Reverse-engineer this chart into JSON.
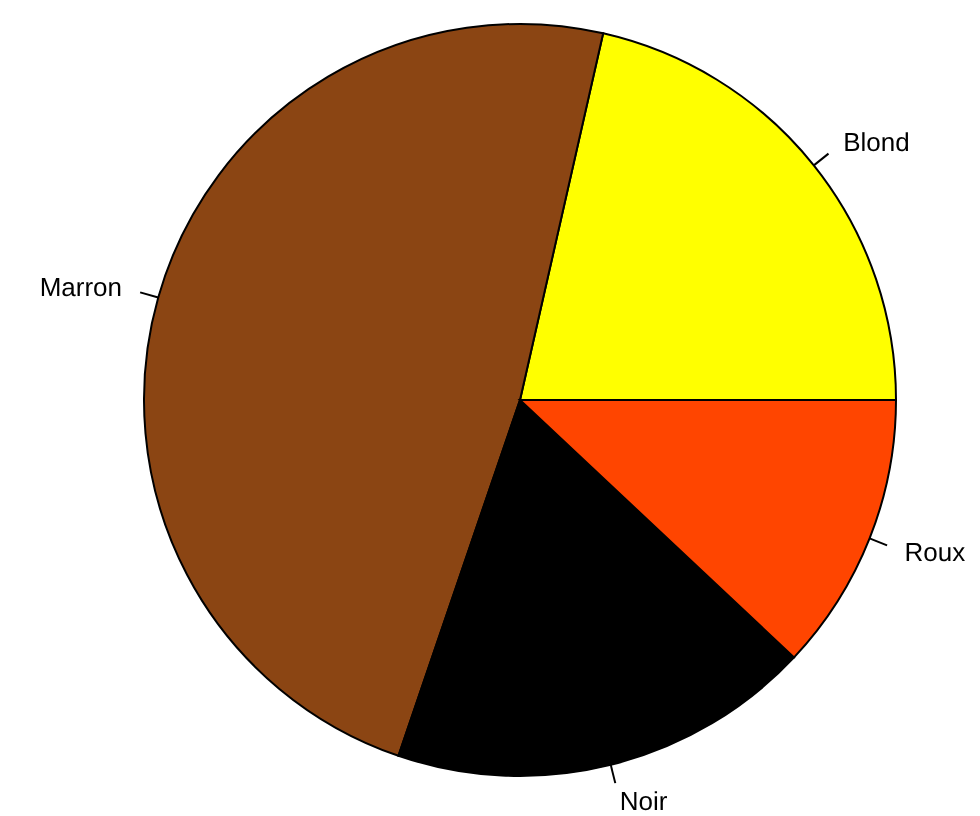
{
  "chart_data": {
    "type": "pie",
    "categories": [
      "Blond",
      "Marron",
      "Noir",
      "Roux"
    ],
    "values": [
      21.45,
      48.31,
      18.24,
      12.0
    ],
    "colors": [
      "#ffff00",
      "#8b4513",
      "#000000",
      "#ff4500"
    ]
  }
}
